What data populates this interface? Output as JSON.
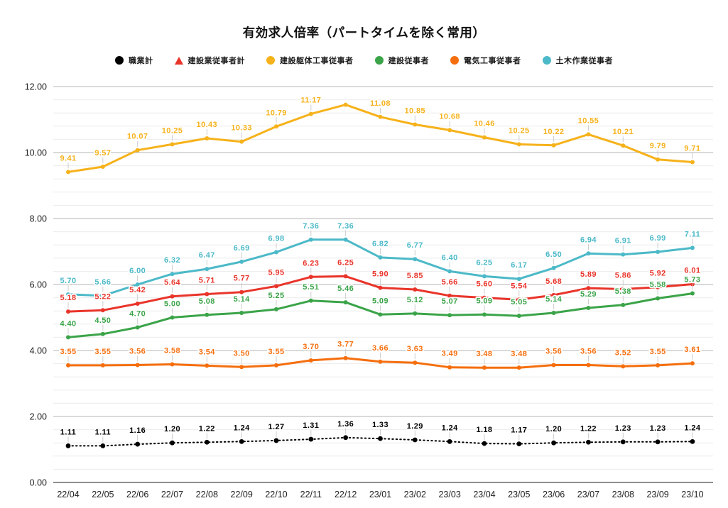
{
  "title": "有効求人倍率（パートタイムを除く常用）",
  "chart_data": {
    "type": "line",
    "title": "有効求人倍率（パートタイムを除く常用）",
    "legend_position": "top",
    "grid": true,
    "ylim": [
      0,
      12
    ],
    "y_major_step": 2,
    "y_minor_step": 0.4,
    "y_ticks": [
      "0.00",
      "2.00",
      "4.00",
      "6.00",
      "8.00",
      "10.00",
      "12.00"
    ],
    "x_labels": [
      "22/04",
      "22/05",
      "22/06",
      "22/07",
      "22/08",
      "22/09",
      "22/10",
      "22/11",
      "22/12",
      "23/01",
      "23/02",
      "23/03",
      "23/04",
      "23/05",
      "23/06",
      "23/07",
      "23/08",
      "23/09",
      "23/10"
    ],
    "series": [
      {
        "name": "職業計",
        "color": "#000000",
        "marker": "circle",
        "line_style": "dotted",
        "values": [
          1.11,
          1.11,
          1.16,
          1.2,
          1.22,
          1.24,
          1.27,
          1.31,
          1.36,
          1.33,
          1.29,
          1.24,
          1.18,
          1.17,
          1.2,
          1.22,
          1.23,
          1.23,
          1.24
        ],
        "hidden_value_labels": []
      },
      {
        "name": "建設業従事者計",
        "color": "#e9342a",
        "marker": "triangle",
        "line_style": "solid",
        "values": [
          5.18,
          5.22,
          5.42,
          5.64,
          5.71,
          5.77,
          5.95,
          6.23,
          6.25,
          5.9,
          5.85,
          5.66,
          5.6,
          5.54,
          5.68,
          5.89,
          5.86,
          5.92,
          6.01
        ],
        "hidden_value_labels": []
      },
      {
        "name": "建設躯体工事従事者",
        "color": "#f6b21b",
        "marker": "circle",
        "line_style": "solid",
        "values": [
          9.41,
          9.57,
          10.07,
          10.25,
          10.43,
          10.33,
          10.79,
          11.17,
          11.45,
          11.08,
          10.85,
          10.68,
          10.46,
          10.25,
          10.22,
          10.55,
          10.21,
          9.79,
          9.71
        ],
        "hidden_value_labels": [
          8
        ]
      },
      {
        "name": "建設従事者",
        "color": "#3ba449",
        "marker": "circle",
        "line_style": "solid",
        "values": [
          4.4,
          4.5,
          4.7,
          5.0,
          5.08,
          5.14,
          5.25,
          5.51,
          5.46,
          5.09,
          5.12,
          5.07,
          5.09,
          5.05,
          5.14,
          5.29,
          5.38,
          5.58,
          5.73
        ],
        "hidden_value_labels": []
      },
      {
        "name": "電気工事従事者",
        "color": "#f56e0d",
        "marker": "circle",
        "line_style": "solid",
        "values": [
          3.55,
          3.55,
          3.56,
          3.58,
          3.54,
          3.5,
          3.55,
          3.7,
          3.77,
          3.66,
          3.63,
          3.49,
          3.48,
          3.48,
          3.56,
          3.56,
          3.52,
          3.55,
          3.61
        ],
        "hidden_value_labels": []
      },
      {
        "name": "土木作業従事者",
        "color": "#4cb9c8",
        "marker": "circle",
        "line_style": "solid",
        "values": [
          5.7,
          5.66,
          6.0,
          6.32,
          6.47,
          6.69,
          6.98,
          7.36,
          7.36,
          6.82,
          6.77,
          6.4,
          6.25,
          6.17,
          6.5,
          6.94,
          6.91,
          6.99,
          7.11
        ],
        "hidden_value_labels": []
      }
    ]
  }
}
